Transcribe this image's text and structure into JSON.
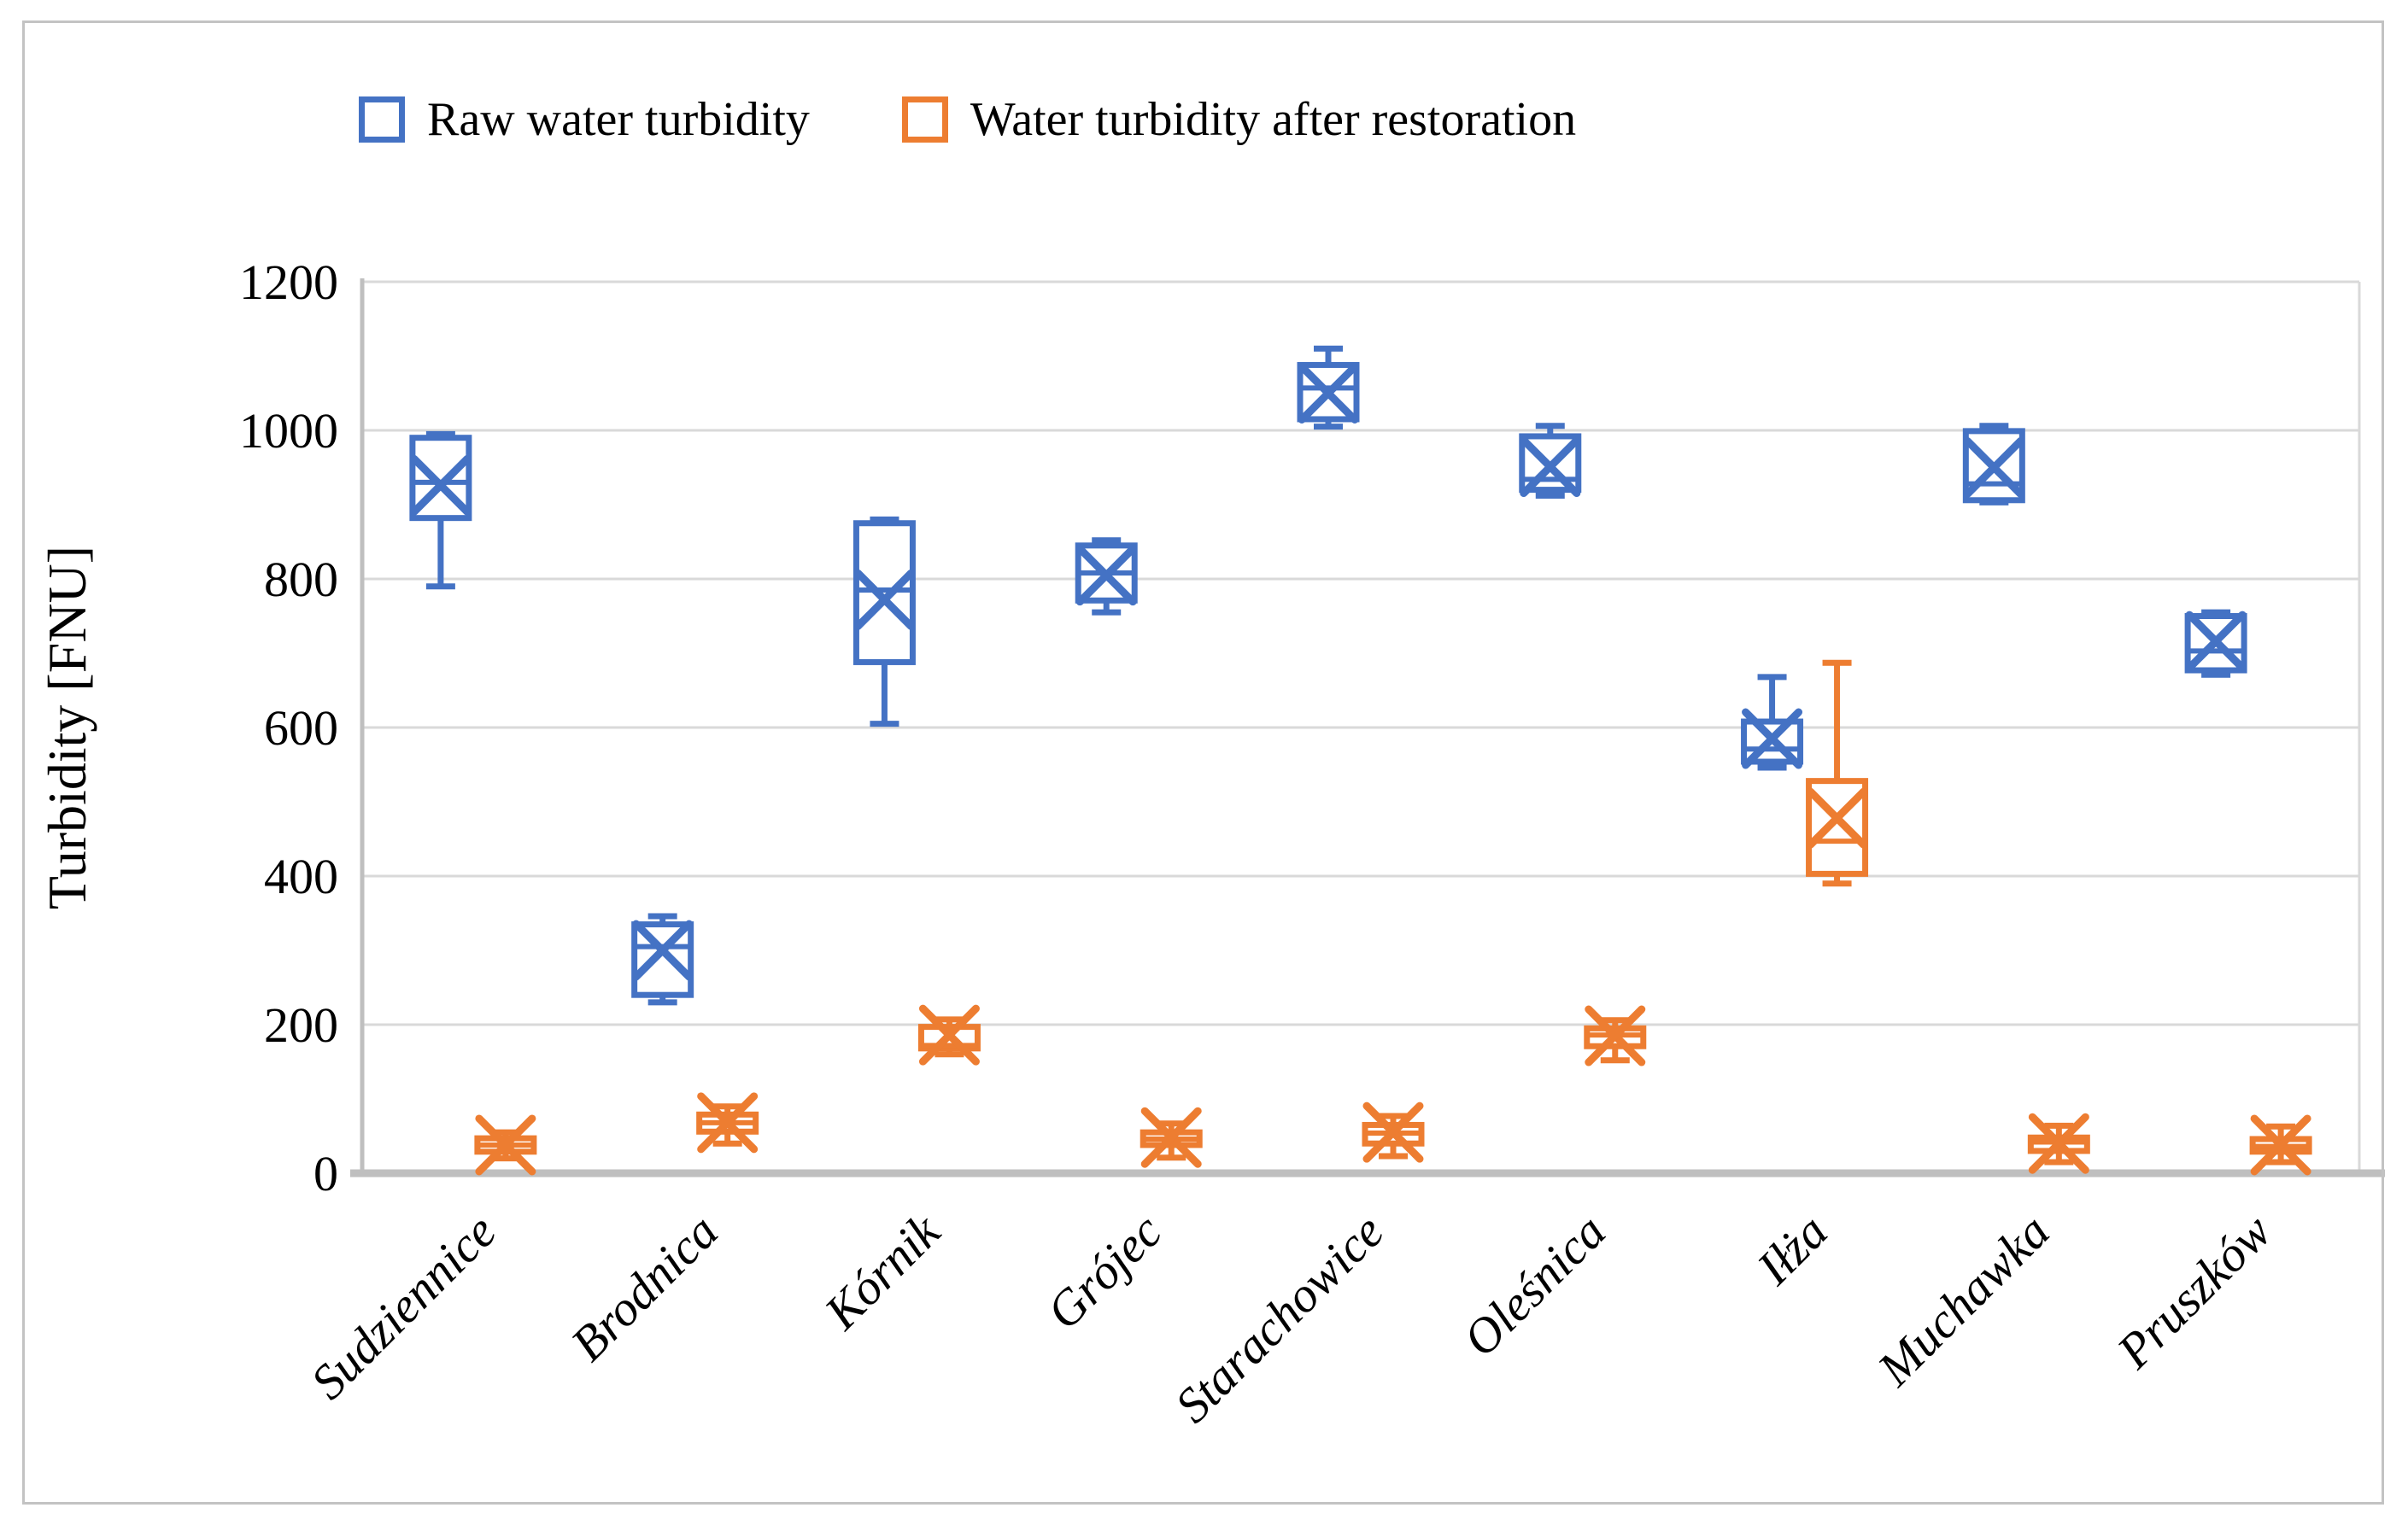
{
  "figure": {
    "background": "#ffffff",
    "border_color": "#c3c3c3"
  },
  "legend": {
    "items": [
      {
        "label": "Raw water turbidity",
        "color": "#4472C4"
      },
      {
        "label": "Water turbidity after restoration",
        "color": "#ED7D31"
      }
    ]
  },
  "colors": {
    "series_raw": "#4472C4",
    "series_restored": "#ED7D31",
    "gridline": "#d9d9d9",
    "axis_line": "#bfbfbf",
    "text": "#000000"
  },
  "chart_data": {
    "type": "boxplot",
    "title": "",
    "xlabel": "",
    "ylabel": "Turbidity [FNU]",
    "ylim": [
      0,
      1200
    ],
    "yticks": [
      0,
      200,
      400,
      600,
      800,
      1000,
      1200
    ],
    "grid": true,
    "legend_position": "top",
    "categories": [
      "Sudziennice",
      "Brodnica",
      "Kórnik",
      "Grójec",
      "Starachowice",
      "Oleśnica",
      "Iłża",
      "Muchawka",
      "Pruszków"
    ],
    "series": [
      {
        "name": "Raw water turbidity",
        "color": "#4472C4",
        "boxes": [
          {
            "min": 790,
            "q1": 882,
            "median": 930,
            "q3": 990,
            "max": 995,
            "mean": 926
          },
          {
            "min": 230,
            "q1": 240,
            "median": 305,
            "q3": 335,
            "max": 346,
            "mean": 300
          },
          {
            "min": 605,
            "q1": 688,
            "median": 785,
            "q3": 875,
            "max": 880,
            "mean": 772
          },
          {
            "min": 755,
            "q1": 771,
            "median": 808,
            "q3": 845,
            "max": 852,
            "mean": 805
          },
          {
            "min": 1005,
            "q1": 1015,
            "median": 1057,
            "q3": 1088,
            "max": 1110,
            "mean": 1050
          },
          {
            "min": 912,
            "q1": 920,
            "median": 934,
            "q3": 992,
            "max": 1006,
            "mean": 951
          },
          {
            "min": 546,
            "q1": 554,
            "median": 571,
            "q3": 608,
            "max": 668,
            "mean": 585
          },
          {
            "min": 903,
            "q1": 906,
            "median": 928,
            "q3": 999,
            "max": 1006,
            "mean": 950
          },
          {
            "min": 671,
            "q1": 677,
            "median": 703,
            "q3": 750,
            "max": 755,
            "mean": 716
          }
        ]
      },
      {
        "name": "Water turbidity after restoration",
        "color": "#ED7D31",
        "boxes": [
          {
            "min": 20,
            "q1": 29,
            "median": 38,
            "q3": 47,
            "max": 55,
            "mean": 38
          },
          {
            "min": 40,
            "q1": 56,
            "median": 68,
            "q3": 79,
            "max": 90,
            "mean": 68
          },
          {
            "min": 160,
            "q1": 168,
            "median": 172,
            "q3": 197,
            "max": 207,
            "mean": 186
          },
          {
            "min": 21,
            "q1": 38,
            "median": 46,
            "q3": 55,
            "max": 67,
            "mean": 48
          },
          {
            "min": 23,
            "q1": 40,
            "median": 54,
            "q3": 65,
            "max": 77,
            "mean": 55
          },
          {
            "min": 152,
            "q1": 171,
            "median": 186,
            "q3": 195,
            "max": 206,
            "mean": 185
          },
          {
            "min": 390,
            "q1": 403,
            "median": 447,
            "q3": 528,
            "max": 687,
            "mean": 478
          },
          {
            "min": 15,
            "q1": 30,
            "median": 42,
            "q3": 48,
            "max": 64,
            "mean": 40
          },
          {
            "min": 15,
            "q1": 29,
            "median": 36,
            "q3": 46,
            "max": 63,
            "mean": 38
          }
        ]
      }
    ]
  }
}
